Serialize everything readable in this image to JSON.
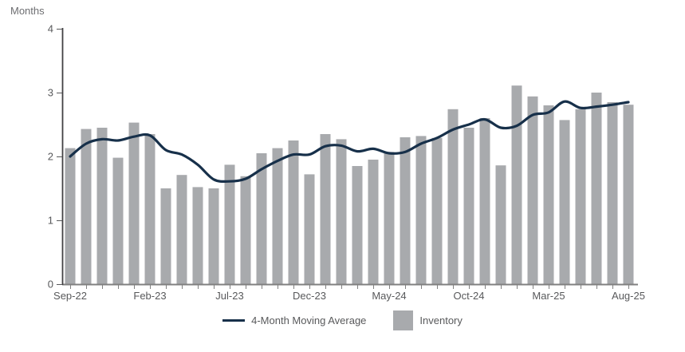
{
  "chart": {
    "y_axis_title": "Months",
    "legend": {
      "line_label": "4-Month Moving Average",
      "bar_label": "Inventory"
    }
  },
  "colors": {
    "bar": "#a8aaad",
    "line": "#17304a",
    "axis_text": "#58595b",
    "title_text": "#6d6e71",
    "x_axis_line": "#808080",
    "y_axis_line": "#414042",
    "background": "#ffffff"
  },
  "chart_data": {
    "type": "bar",
    "title": "",
    "xlabel": "",
    "ylabel": "Months",
    "ylim": [
      0,
      4
    ],
    "y_ticks": [
      0,
      1,
      2,
      3,
      4
    ],
    "grid": false,
    "legend_position": "bottom",
    "x_tick_labels_shown": [
      "Sep-22",
      "Feb-23",
      "Jul-23",
      "Dec-23",
      "May-24",
      "Oct-24",
      "Mar-25",
      "Aug-25"
    ],
    "x_label_every": 5,
    "categories": [
      "Sep-22",
      "Oct-22",
      "Nov-22",
      "Dec-22",
      "Jan-23",
      "Feb-23",
      "Mar-23",
      "Apr-23",
      "May-23",
      "Jun-23",
      "Jul-23",
      "Aug-23",
      "Sep-23",
      "Oct-23",
      "Nov-23",
      "Dec-23",
      "Jan-24",
      "Feb-24",
      "Mar-24",
      "Apr-24",
      "May-24",
      "Jun-24",
      "Jul-24",
      "Aug-24",
      "Sep-24",
      "Oct-24",
      "Nov-24",
      "Dec-24",
      "Jan-25",
      "Feb-25",
      "Mar-25",
      "Apr-25",
      "May-25",
      "Jun-25",
      "Jul-25",
      "Aug-25"
    ],
    "series": [
      {
        "name": "Inventory",
        "type": "bar",
        "values": [
          2.13,
          2.43,
          2.45,
          1.98,
          2.53,
          2.35,
          1.5,
          1.71,
          1.52,
          1.5,
          1.87,
          1.69,
          2.05,
          2.13,
          2.25,
          1.72,
          2.35,
          2.27,
          1.85,
          1.95,
          2.07,
          2.3,
          2.32,
          2.29,
          2.74,
          2.45,
          2.6,
          1.86,
          3.11,
          2.94,
          2.8,
          2.57,
          2.74,
          3.0,
          2.85,
          2.81
        ]
      },
      {
        "name": "4-Month Moving Average",
        "type": "line",
        "values": [
          2.0,
          2.2,
          2.27,
          2.25,
          2.31,
          2.33,
          2.1,
          2.03,
          1.87,
          1.64,
          1.61,
          1.65,
          1.8,
          1.93,
          2.03,
          2.03,
          2.16,
          2.17,
          2.08,
          2.12,
          2.05,
          2.07,
          2.2,
          2.29,
          2.42,
          2.5,
          2.58,
          2.45,
          2.48,
          2.65,
          2.69,
          2.86,
          2.76,
          2.78,
          2.81,
          2.85
        ]
      }
    ]
  }
}
